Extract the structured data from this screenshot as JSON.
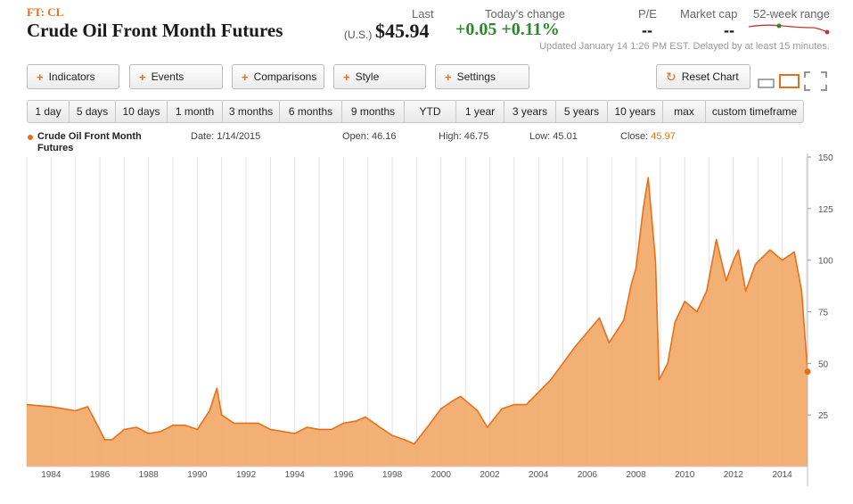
{
  "header": {
    "ticker": "FT: CL",
    "title": "Crude Oil Front Month Futures",
    "last_label": "Last",
    "currency": "(U.S.)",
    "price": "$45.94",
    "change_label": "Today's change",
    "change": "+0.05 +0.11%",
    "pe_label": "P/E",
    "pe_value": "--",
    "mcap_label": "Market cap",
    "mcap_value": "--",
    "range_label": "52-week range",
    "updated": "Updated January 14 1:26 PM EST. Delayed by at least 15 minutes."
  },
  "toolbar": {
    "indicators": "Indicators",
    "events": "Events",
    "comparisons": "Comparisons",
    "style": "Style",
    "settings": "Settings",
    "reset": "Reset Chart"
  },
  "timeframes": [
    "1 day",
    "5 days",
    "10 days",
    "1 month",
    "3 months",
    "6 months",
    "9 months",
    "YTD",
    "1 year",
    "3 years",
    "5 years",
    "10 years",
    "max",
    "custom timeframe"
  ],
  "info": {
    "series": "Crude Oil Front Month Futures",
    "date": "Date: 1/14/2015",
    "open": "Open: 46.16",
    "high": "High: 46.75",
    "low": "Low: 45.01",
    "close_label": "Close:",
    "close_value": "45.97"
  },
  "colors": {
    "accent": "#e8701a",
    "area_fill": "#f2a766",
    "positive": "#2a8a2a"
  },
  "chart_data": {
    "type": "area",
    "x": [
      1983.0,
      1983.5,
      1984.0,
      1984.5,
      1985.0,
      1985.5,
      1985.9,
      1986.2,
      1986.5,
      1987.0,
      1987.5,
      1988.0,
      1988.5,
      1989.0,
      1989.5,
      1990.0,
      1990.5,
      1990.8,
      1991.0,
      1991.5,
      1992.0,
      1992.5,
      1993.0,
      1993.5,
      1994.0,
      1994.5,
      1995.0,
      1995.5,
      1996.0,
      1996.5,
      1996.9,
      1997.5,
      1998.0,
      1998.5,
      1998.9,
      1999.5,
      2000.0,
      2000.5,
      2000.8,
      2001.5,
      2001.9,
      2002.5,
      2003.0,
      2003.5,
      2004.0,
      2004.5,
      2005.0,
      2005.5,
      2006.0,
      2006.5,
      2006.9,
      2007.5,
      2007.8,
      2008.0,
      2008.3,
      2008.5,
      2008.8,
      2008.95,
      2009.3,
      2009.6,
      2010.0,
      2010.5,
      2010.9,
      2011.3,
      2011.7,
      2012.0,
      2012.2,
      2012.5,
      2012.9,
      2013.5,
      2014.0,
      2014.5,
      2014.8,
      2015.04
    ],
    "values": [
      30,
      29.5,
      29,
      28,
      27,
      29,
      20,
      13,
      13,
      18,
      19,
      16,
      17,
      20,
      20,
      18,
      27,
      38,
      25,
      21,
      21,
      21,
      18,
      17,
      16,
      19,
      18,
      18,
      21,
      22,
      24,
      19,
      15,
      13,
      11,
      20,
      28,
      32,
      34,
      27,
      19,
      28,
      30,
      30,
      36,
      42,
      50,
      58,
      65,
      72,
      60,
      71,
      88,
      96,
      125,
      140,
      100,
      42,
      50,
      70,
      80,
      75,
      85,
      110,
      90,
      100,
      105,
      85,
      98,
      105,
      100,
      104,
      85,
      45.97
    ],
    "title": "",
    "xlabel": "",
    "ylabel": "",
    "xticks": [
      "1984",
      "1986",
      "1988",
      "1990",
      "1992",
      "1994",
      "1996",
      "1998",
      "2000",
      "2002",
      "2004",
      "2006",
      "2008",
      "2010",
      "2012",
      "2014"
    ],
    "yticks": [
      "25",
      "50",
      "75",
      "100",
      "125",
      "150"
    ],
    "xlim": [
      1983.0,
      2015.04
    ],
    "ylim": [
      0,
      150
    ],
    "grid": "vertical",
    "last_marker": 45.97
  }
}
